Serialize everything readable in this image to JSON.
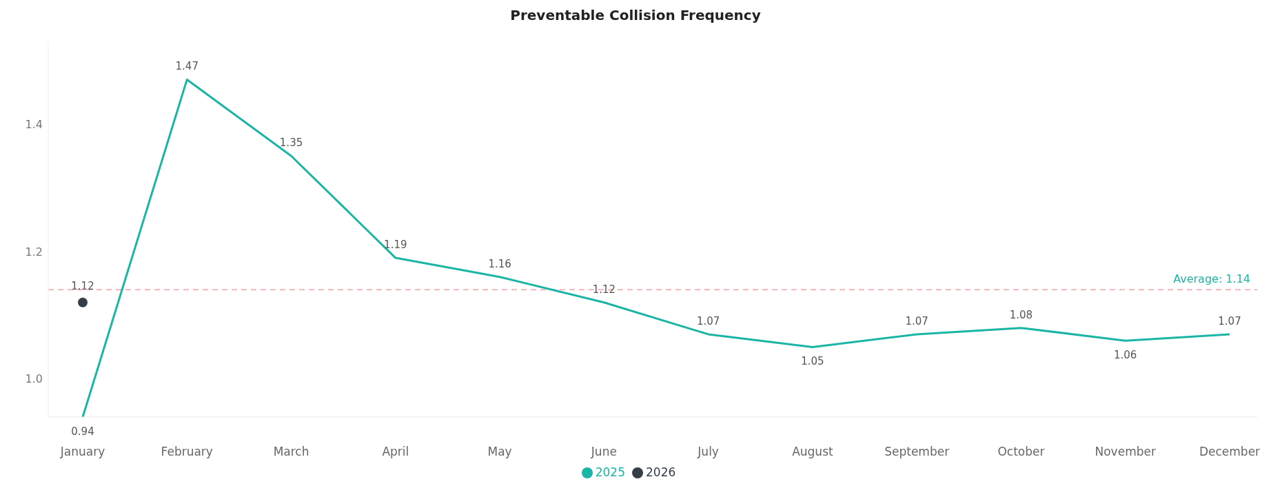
{
  "chart_data": {
    "type": "line",
    "title": "Preventable Collision Frequency",
    "categories": [
      "January",
      "February",
      "March",
      "April",
      "May",
      "June",
      "July",
      "August",
      "September",
      "October",
      "November",
      "December"
    ],
    "series": [
      {
        "name": "2025",
        "color": "#1ab5a5",
        "values": [
          0.94,
          1.47,
          1.35,
          1.19,
          1.16,
          1.12,
          1.07,
          1.05,
          1.07,
          1.08,
          1.06,
          1.07
        ]
      },
      {
        "name": "2026",
        "type": "scatter",
        "color": "#333e48",
        "values": [
          1.12,
          null,
          null,
          null,
          null,
          null,
          null,
          null,
          null,
          null,
          null,
          null
        ]
      }
    ],
    "ylim": [
      0.94,
      1.53
    ],
    "yticks": [
      {
        "value": 1,
        "label": "1.0"
      },
      1.2,
      1.4
    ],
    "ref_lines": [
      {
        "axis": "y",
        "value": 1.14,
        "label": "Average: 1.14",
        "color": "#f4b6be",
        "line_style": "dashed"
      }
    ],
    "data_labels": true,
    "line_style": "solid",
    "grid": false,
    "legend": "bottom"
  }
}
